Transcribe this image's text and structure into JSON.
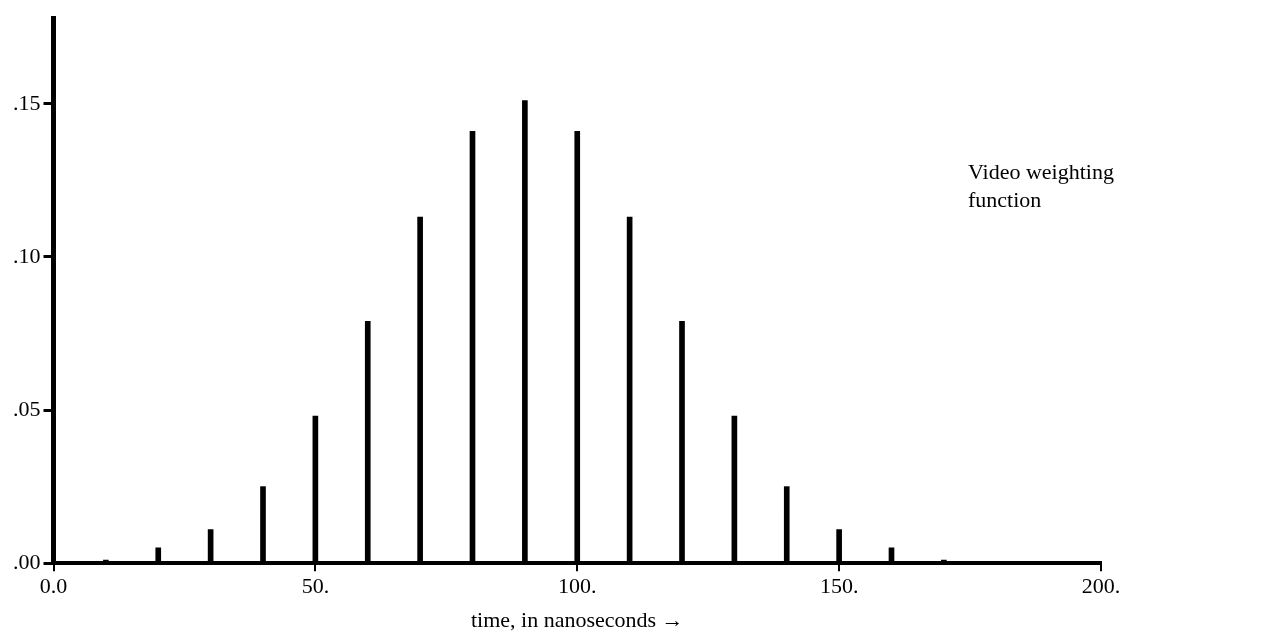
{
  "chart_data": {
    "type": "bar",
    "xlabel": "time, in nanoseconds →",
    "x": [
      10,
      20,
      30,
      40,
      50,
      60,
      70,
      80,
      90,
      100,
      110,
      120,
      130,
      140,
      150,
      160,
      170
    ],
    "values": [
      0.001,
      0.005,
      0.011,
      0.025,
      0.048,
      0.079,
      0.113,
      0.141,
      0.151,
      0.141,
      0.113,
      0.079,
      0.048,
      0.025,
      0.011,
      0.005,
      0.001
    ],
    "color": "#000000",
    "xlim": [
      0,
      200
    ],
    "xticks": [
      {
        "value": 0,
        "label": "0.0"
      },
      {
        "value": 50,
        "label": "50."
      },
      {
        "value": 100,
        "label": "100."
      },
      {
        "value": 150,
        "label": "150."
      },
      {
        "value": 200,
        "label": "200."
      }
    ],
    "ylim": [
      0,
      0.178
    ],
    "yticks": [
      {
        "value": 0,
        "label": ".00"
      },
      {
        "value": 0.05,
        "label": ".05"
      },
      {
        "value": 0.1,
        "label": ".10"
      },
      {
        "value": 0.15,
        "label": ".15"
      }
    ],
    "annotations": [
      "Video weighting function"
    ],
    "grid": false,
    "legend": false
  }
}
